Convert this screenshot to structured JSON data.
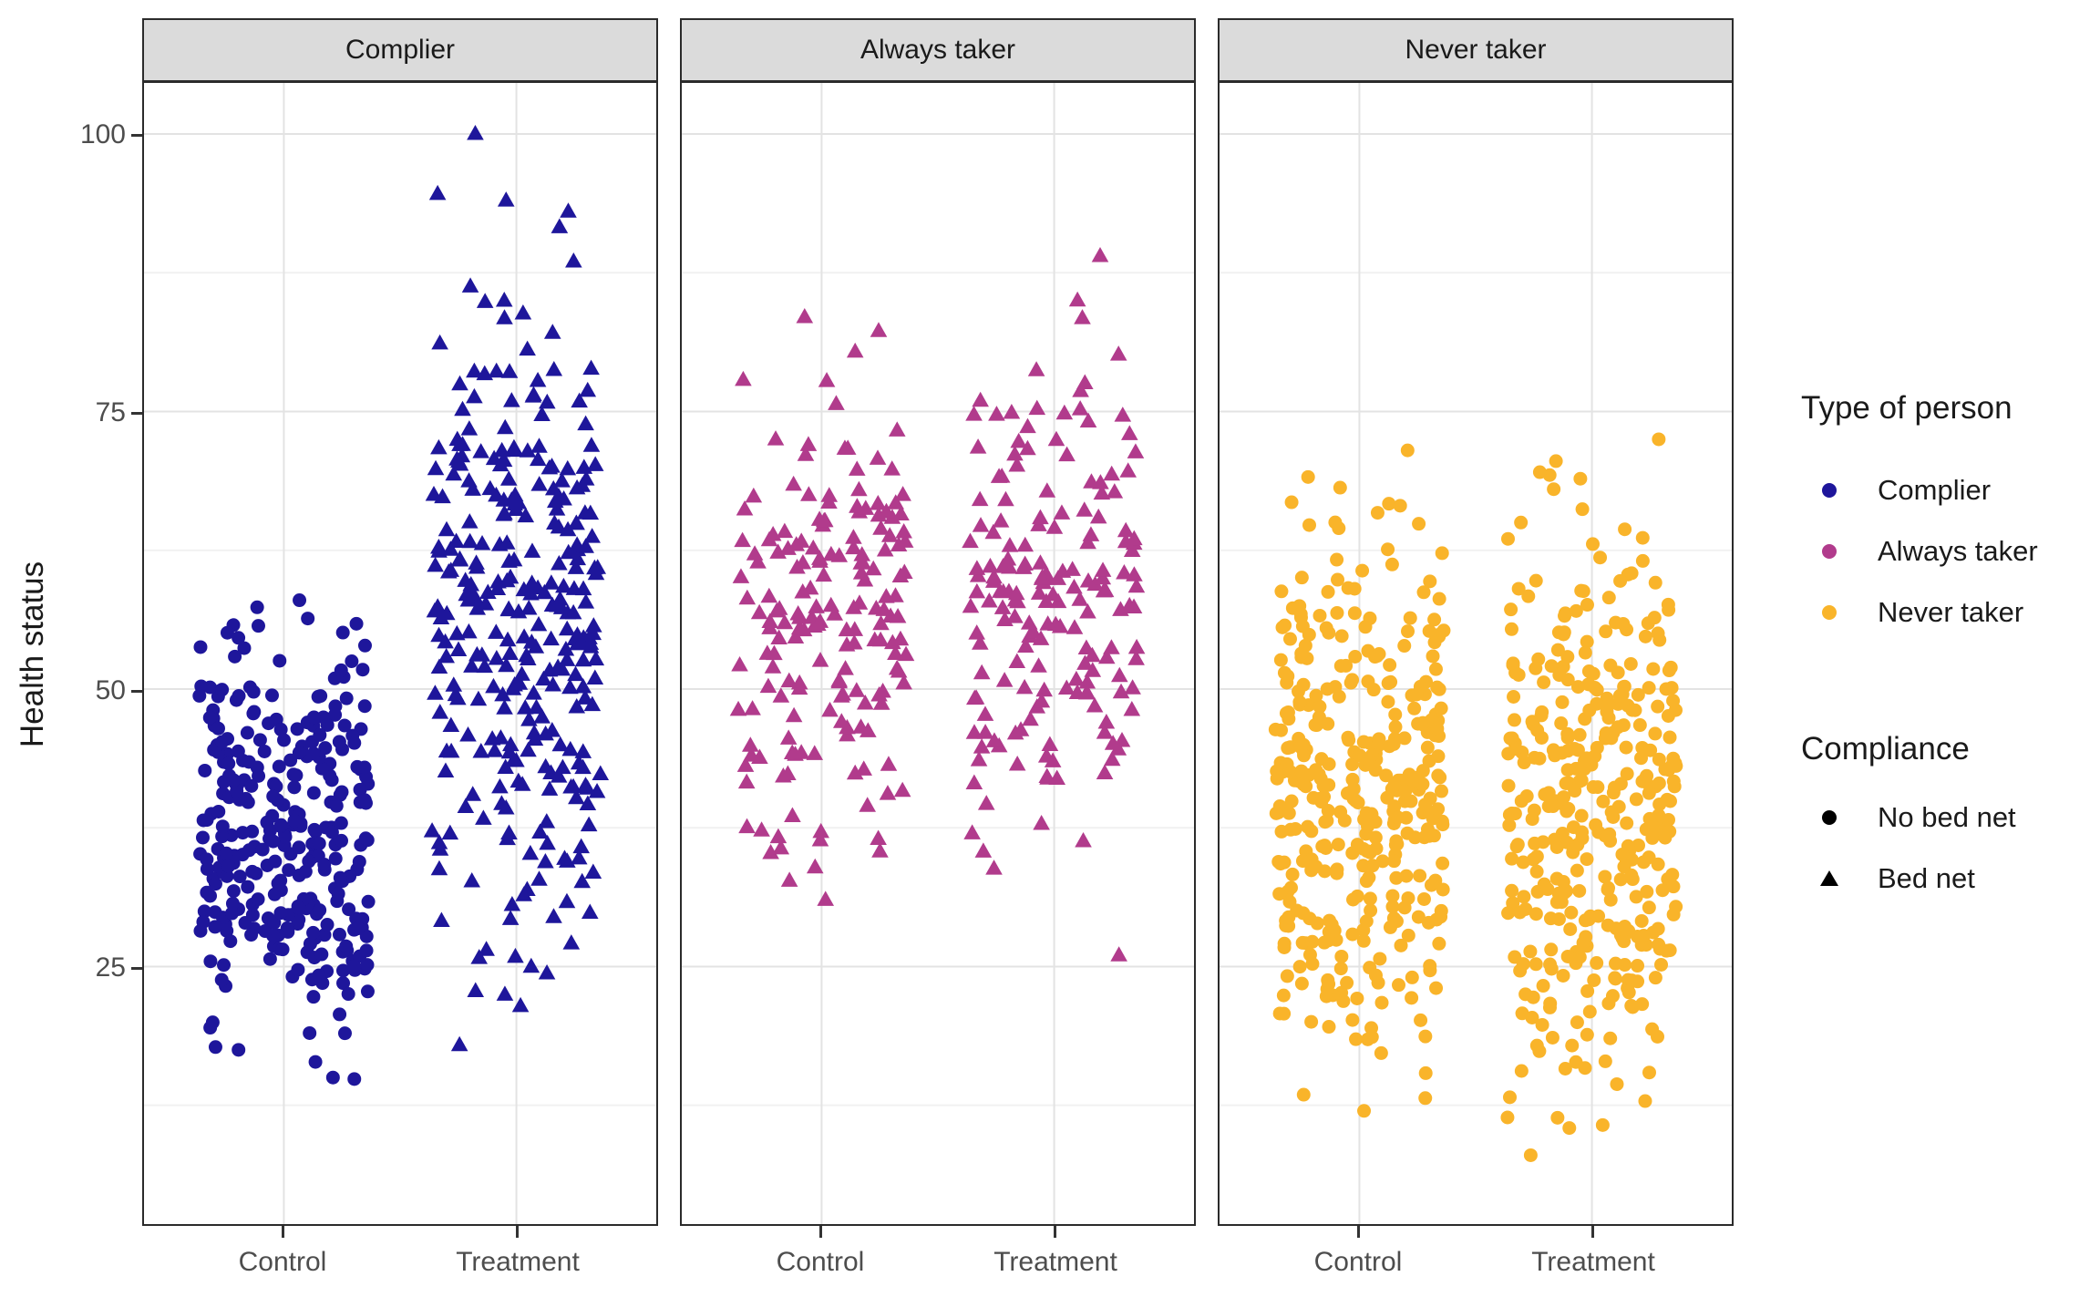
{
  "chart_data": {
    "type": "scatter",
    "subtype": "jittered point cloud, 3 facets by type of person",
    "title": "",
    "y_label": "Health status",
    "y_ticks": [
      "100",
      "75",
      "50",
      "25"
    ],
    "y_tick_values": [
      100,
      75,
      50,
      25
    ],
    "y_range_shown": [
      2,
      104
    ],
    "x_categories": [
      "Control",
      "Treatment"
    ],
    "grid": {
      "major": [
        25,
        50,
        75,
        100
      ],
      "minor": [
        12.5,
        37.5,
        62.5,
        87.5
      ]
    },
    "facets": [
      {
        "label": "Complier",
        "color": "#1E169B",
        "groups": [
          {
            "x": "Control",
            "compliance": "No bed net",
            "shape": "circle",
            "n": 310,
            "mean": 36.5,
            "sd": 8.5,
            "min": 14.5,
            "max": 58.5,
            "seed": 11,
            "extra": [
              15,
              58
            ]
          },
          {
            "x": "Treatment",
            "compliance": "Bed net",
            "shape": "triangle",
            "n": 310,
            "mean": 56,
            "sd": 14.5,
            "min": 16,
            "max": 96,
            "seed": 22,
            "extra": [
              100,
              94,
              93
            ]
          }
        ]
      },
      {
        "label": "Always taker",
        "color": "#B13B8C",
        "groups": [
          {
            "x": "Control",
            "compliance": "Bed net",
            "shape": "triangle",
            "n": 175,
            "mean": 56,
            "sd": 10,
            "min": 31,
            "max": 83.5,
            "seed": 33,
            "extra": [
              83.5,
              31
            ]
          },
          {
            "x": "Treatment",
            "compliance": "Bed net",
            "shape": "triangle",
            "n": 175,
            "mean": 56.5,
            "sd": 11,
            "min": 26,
            "max": 89,
            "seed": 44,
            "extra": [
              89,
              85,
              26
            ]
          }
        ]
      },
      {
        "label": "Never taker",
        "color": "#F9B42A",
        "groups": [
          {
            "x": "Control",
            "compliance": "No bed net",
            "shape": "circle",
            "n": 380,
            "mean": 40,
            "sd": 12,
            "min": 12,
            "max": 71.5,
            "seed": 55,
            "extra": [
              71.5,
              12
            ]
          },
          {
            "x": "Treatment",
            "compliance": "No bed net",
            "shape": "circle",
            "n": 380,
            "mean": 39.5,
            "sd": 12,
            "min": 10,
            "max": 72.5,
            "seed": 66,
            "extra": [
              72.5,
              8
            ]
          }
        ]
      }
    ],
    "legend": {
      "person_title": "Type of person",
      "person_items": [
        {
          "label": "Complier",
          "color": "#1E169B"
        },
        {
          "label": "Always taker",
          "color": "#B13B8C"
        },
        {
          "label": "Never taker",
          "color": "#F9B42A"
        }
      ],
      "compliance_title": "Compliance",
      "compliance_items": [
        {
          "label": "No bed net",
          "shape": "circle"
        },
        {
          "label": "Bed net",
          "shape": "triangle"
        }
      ]
    },
    "style": {
      "strip_bg": "#DBDBDB",
      "panel_border": "#2B2B2B",
      "grid_major": "#E3E3E3",
      "grid_minor": "#F1F1F1",
      "tick_text": "#4D4D4D",
      "key_color": "#000000"
    }
  }
}
